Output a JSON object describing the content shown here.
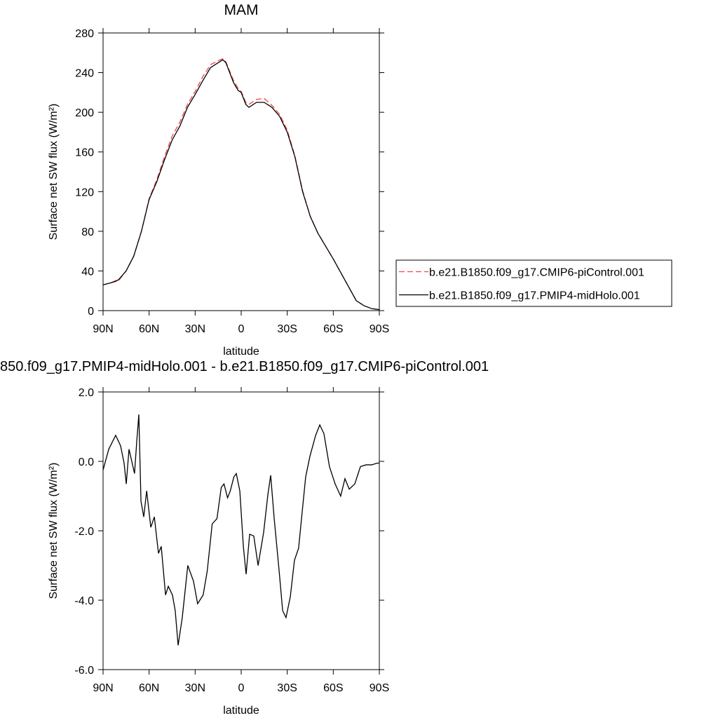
{
  "chart_data": [
    {
      "type": "line",
      "title": "MAM",
      "x_label": "latitude",
      "y_label": "Surface net SW flux (W/m²)",
      "xlim": [
        90,
        -90
      ],
      "ylim": [
        0,
        280
      ],
      "xticks": [
        {
          "value": 90,
          "label": "90N"
        },
        {
          "value": 60,
          "label": "60N"
        },
        {
          "value": 30,
          "label": "30N"
        },
        0,
        {
          "value": -30,
          "label": "30S"
        },
        {
          "value": -60,
          "label": "60S"
        },
        {
          "value": -90,
          "label": "90S"
        }
      ],
      "yticks": [
        0,
        40,
        80,
        120,
        160,
        200,
        240,
        280
      ],
      "legend": "right",
      "x": [
        90,
        85,
        80,
        75,
        70,
        65,
        60,
        55,
        50,
        45,
        40,
        35,
        30,
        25,
        20,
        15,
        12,
        10,
        5,
        2,
        0,
        -3,
        -5,
        -10,
        -15,
        -20,
        -25,
        -30,
        -35,
        -40,
        -45,
        -50,
        -55,
        -60,
        -65,
        -70,
        -75,
        -80,
        -85,
        -90
      ],
      "series": [
        {
          "name": "b.e21.B1850.f09_g17.CMIP6-piControl.001",
          "color": "#ff4040",
          "line_style": "dashed",
          "values": [
            26,
            28,
            30,
            40,
            55,
            80,
            113,
            132,
            155,
            176,
            190,
            208,
            221,
            236,
            248,
            252,
            254,
            251,
            232,
            224,
            221,
            210,
            208,
            213,
            214,
            207,
            198,
            182,
            156,
            121,
            95,
            78,
            65,
            52,
            38,
            24,
            10,
            5,
            2,
            1
          ]
        },
        {
          "name": "b.e21.B1850.f09_g17.PMIP4-midHolo.001",
          "color": "#000000",
          "line_style": "solid",
          "values": [
            26,
            28,
            31,
            40,
            55,
            80,
            112,
            130,
            152,
            172,
            186,
            205,
            218,
            232,
            245,
            250,
            253,
            250,
            230,
            222,
            220,
            208,
            205,
            210,
            210,
            205,
            196,
            180,
            155,
            120,
            95,
            78,
            65,
            52,
            38,
            24,
            10,
            5,
            2,
            1
          ]
        }
      ]
    },
    {
      "type": "line",
      "title": "850.f09_g17.PMIP4-midHolo.001 - b.e21.B1850.f09_g17.CMIP6-piControl.001",
      "x_label": "latitude",
      "y_label": "Surface net SW flux (W/m²)",
      "xlim": [
        90,
        -90
      ],
      "ylim": [
        -6,
        2
      ],
      "xticks": [
        {
          "value": 90,
          "label": "90N"
        },
        {
          "value": 60,
          "label": "60N"
        },
        {
          "value": 30,
          "label": "30N"
        },
        0,
        {
          "value": -30,
          "label": "30S"
        },
        {
          "value": -60,
          "label": "60S"
        },
        {
          "value": -90,
          "label": "90S"
        }
      ],
      "yticks": [
        {
          "value": 2,
          "label": "2.0"
        },
        {
          "value": 0,
          "label": "0.0"
        },
        {
          "value": -2,
          "label": "-2.0"
        },
        {
          "value": -4,
          "label": "-4.0"
        },
        {
          "value": -6,
          "label": "-6.0"
        }
      ],
      "x": [
        90,
        86.3,
        81.8,
        78.6,
        76.3,
        74.9,
        73.1,
        69.5,
        68.1,
        66.7,
        65.3,
        63.5,
        61.6,
        58.9,
        56.6,
        53.9,
        52.1,
        49.3,
        47.5,
        44.8,
        43.0,
        41.1,
        38.4,
        34.8,
        31.1,
        28.4,
        24.8,
        22.1,
        18.9,
        15.8,
        13.0,
        11.2,
        8.9,
        7.1,
        4.8,
        3.2,
        0.9,
        -1.4,
        -3.2,
        -5.5,
        -8.2,
        -11.0,
        -14.6,
        -17.4,
        -19.2,
        -21.5,
        -24.7,
        -27.0,
        -29.2,
        -32.0,
        -34.7,
        -37.4,
        -39.3,
        -42.0,
        -44.8,
        -48.5,
        -51.2,
        -53.9,
        -57.5,
        -61.2,
        -64.8,
        -67.6,
        -70.4,
        -74.0,
        -77.7,
        -81.3,
        -85.0,
        -88.6,
        -90
      ],
      "series": [
        {
          "color": "#000000",
          "values": [
            -0.25,
            0.35,
            0.75,
            0.45,
            -0.05,
            -0.65,
            0.35,
            -0.35,
            0.55,
            1.35,
            -1.15,
            -1.6,
            -0.85,
            -1.9,
            -1.6,
            -2.65,
            -2.45,
            -3.85,
            -3.6,
            -3.85,
            -4.3,
            -5.3,
            -4.5,
            -3.0,
            -3.45,
            -4.1,
            -3.85,
            -3.15,
            -1.8,
            -1.65,
            -0.75,
            -0.65,
            -1.05,
            -0.85,
            -0.45,
            -0.35,
            -0.85,
            -2.45,
            -3.25,
            -2.1,
            -2.15,
            -3.0,
            -2.05,
            -0.95,
            -0.4,
            -1.65,
            -3.15,
            -4.3,
            -4.5,
            -3.9,
            -2.85,
            -2.5,
            -1.65,
            -0.45,
            0.15,
            0.75,
            1.05,
            0.8,
            -0.15,
            -0.65,
            -1.0,
            -0.5,
            -0.8,
            -0.65,
            -0.15,
            -0.1,
            -0.1,
            -0.05,
            -0.05
          ]
        }
      ]
    }
  ]
}
